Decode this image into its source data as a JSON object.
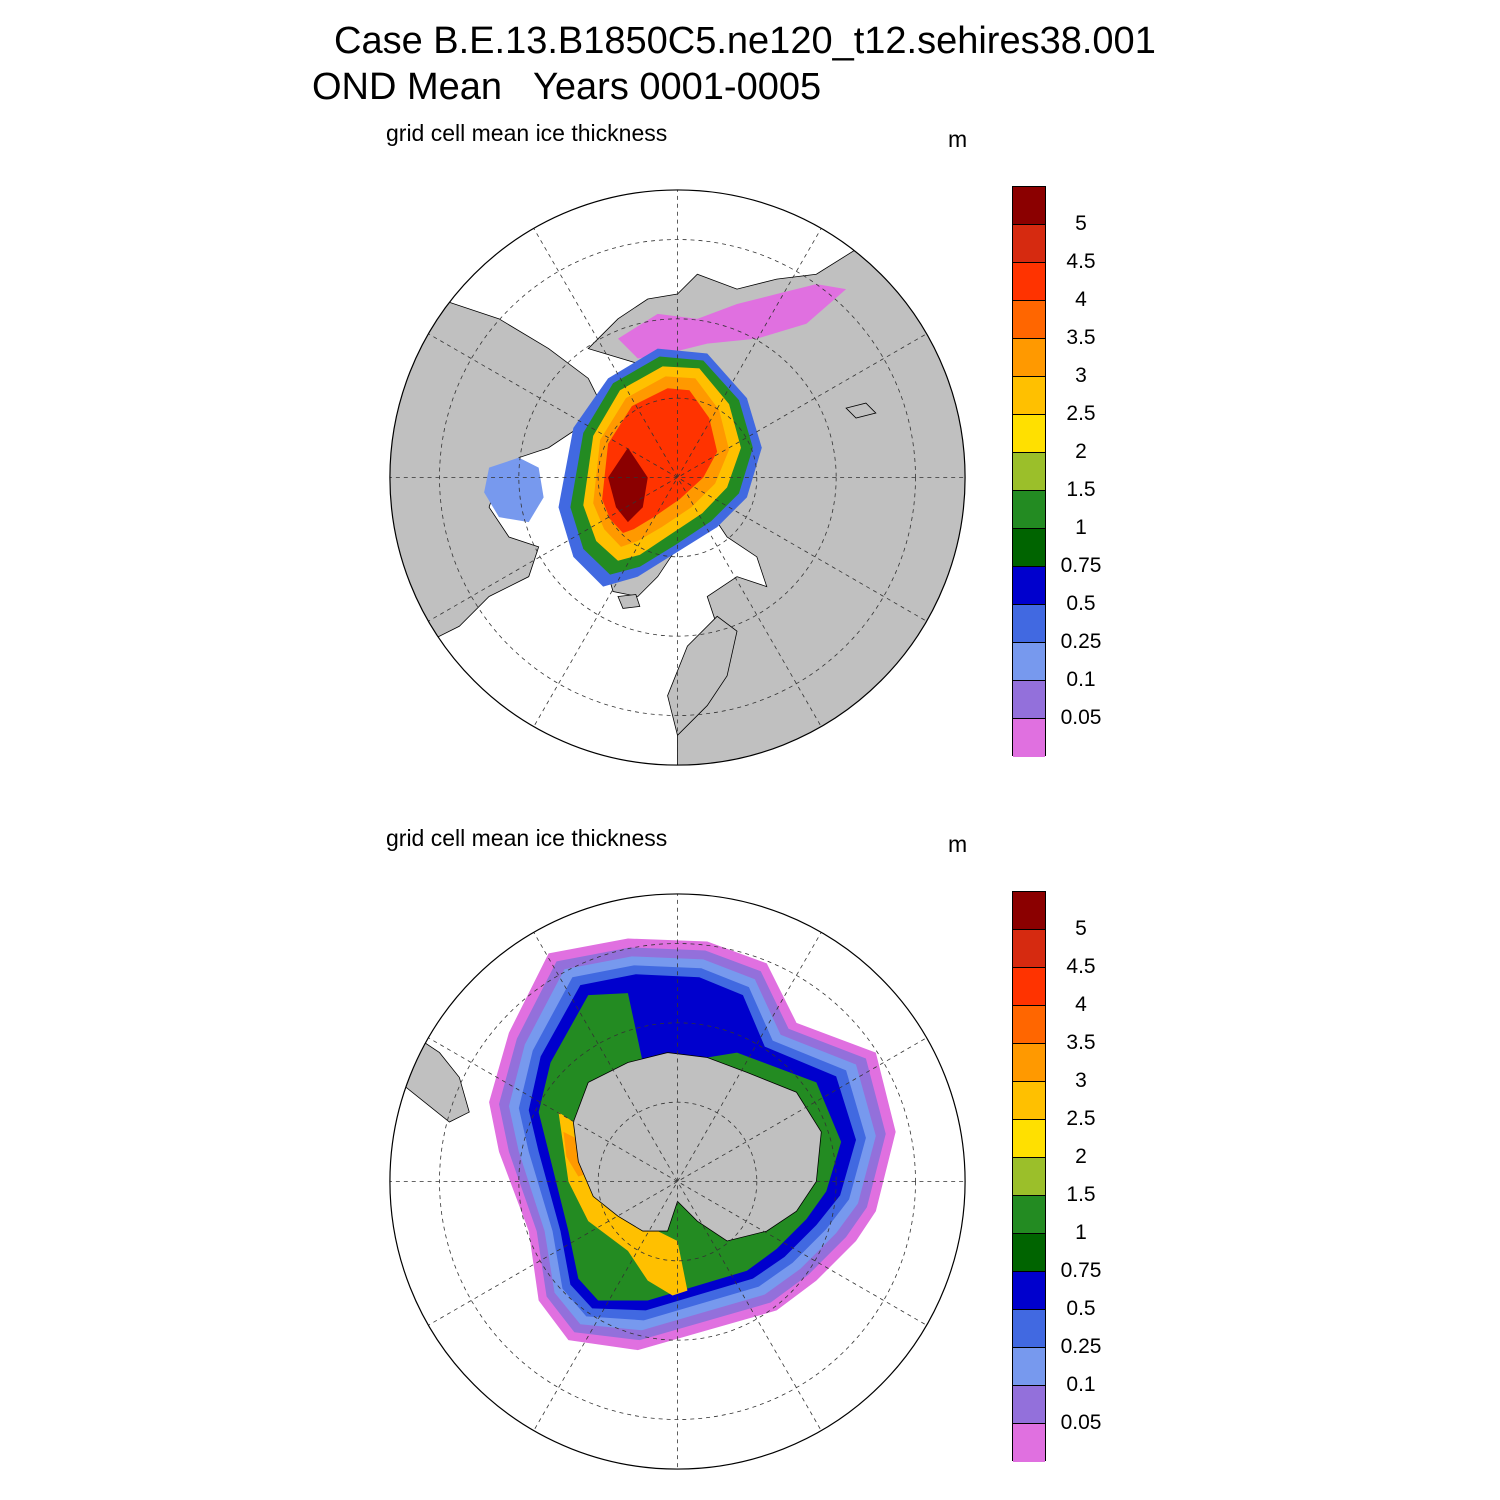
{
  "title": {
    "line1": "Case B.E.13.B1850C5.ne120_t12.sehires38.001",
    "line2": "OND Mean   Years 0001-0005"
  },
  "panels": [
    {
      "id": "north",
      "subtitle": "grid cell mean ice thickness",
      "units": "m"
    },
    {
      "id": "south",
      "subtitle": "grid cell mean ice thickness",
      "units": "m"
    }
  ],
  "colorbar": {
    "labels": [
      "5",
      "4.5",
      "4",
      "3.5",
      "3",
      "2.5",
      "2",
      "1.5",
      "1",
      "0.75",
      "0.5",
      "0.25",
      "0.1",
      "0.05"
    ],
    "colors": [
      "#8b0000",
      "#d62a10",
      "#ff3300",
      "#ff6600",
      "#ff9900",
      "#ffc000",
      "#ffe000",
      "#9bbf2a",
      "#238b22",
      "#006400",
      "#0000cd",
      "#4169e1",
      "#7799ee",
      "#9370db",
      "#e070e0"
    ]
  },
  "map_colors": {
    "land": "#c0c0c0",
    "ocean": "#ffffff",
    "grid": "#333333"
  }
}
